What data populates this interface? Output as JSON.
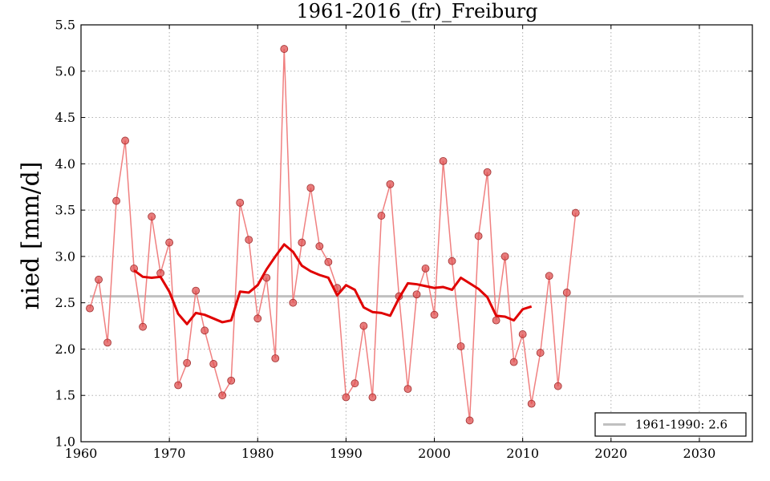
{
  "chart_data": {
    "type": "line",
    "title": "1961-2016_(fr)_Freiburg",
    "xlabel": "",
    "ylabel": "nied [mm/d]",
    "xlim": [
      1960,
      2036
    ],
    "ylim": [
      1.0,
      5.5
    ],
    "xticks": [
      1960,
      1970,
      1980,
      1990,
      2000,
      2010,
      2020,
      2030
    ],
    "yticks": [
      1.0,
      1.5,
      2.0,
      2.5,
      3.0,
      3.5,
      4.0,
      4.5,
      5.0,
      5.5
    ],
    "grid": true,
    "legend_position": "bottom-right",
    "colors": {
      "annual_line": "#f08080",
      "annual_marker": "#e05050",
      "moving_average": "#e00000",
      "reference": "#c0c0c0"
    },
    "series": [
      {
        "kind": "annual",
        "x": [
          1961,
          1962,
          1963,
          1964,
          1965,
          1966,
          1967,
          1968,
          1969,
          1970,
          1971,
          1972,
          1973,
          1974,
          1975,
          1976,
          1977,
          1978,
          1979,
          1980,
          1981,
          1982,
          1983,
          1984,
          1985,
          1986,
          1987,
          1988,
          1989,
          1990,
          1991,
          1992,
          1993,
          1994,
          1995,
          1996,
          1997,
          1998,
          1999,
          2000,
          2001,
          2002,
          2003,
          2004,
          2005,
          2006,
          2007,
          2008,
          2009,
          2010,
          2011,
          2012,
          2013,
          2014,
          2015,
          2016
        ],
        "y": [
          2.44,
          2.75,
          2.07,
          3.6,
          4.25,
          2.87,
          2.24,
          3.43,
          2.82,
          3.15,
          1.61,
          1.85,
          2.63,
          2.2,
          1.84,
          1.5,
          1.66,
          3.58,
          3.18,
          2.33,
          2.77,
          1.9,
          5.24,
          2.5,
          3.15,
          3.74,
          3.11,
          2.94,
          2.66,
          1.48,
          1.63,
          2.25,
          1.48,
          3.44,
          3.78,
          2.57,
          1.57,
          2.59,
          2.87,
          2.37,
          4.03,
          2.95,
          2.03,
          1.23,
          3.22,
          3.91,
          2.31,
          3.0,
          1.86,
          2.16,
          1.41,
          1.96,
          2.79,
          1.6,
          2.61,
          3.47
        ]
      },
      {
        "kind": "moving-average",
        "x": [
          1966,
          1967,
          1968,
          1969,
          1970,
          1971,
          1972,
          1973,
          1974,
          1975,
          1976,
          1977,
          1978,
          1979,
          1980,
          1981,
          1982,
          1983,
          1984,
          1985,
          1986,
          1987,
          1988,
          1989,
          1990,
          1991,
          1992,
          1993,
          1994,
          1995,
          1996,
          1997,
          1998,
          1999,
          2000,
          2001,
          2002,
          2003,
          2004,
          2005,
          2006,
          2007,
          2008,
          2009,
          2010,
          2011
        ],
        "y": [
          2.85,
          2.78,
          2.77,
          2.78,
          2.62,
          2.38,
          2.27,
          2.39,
          2.37,
          2.33,
          2.29,
          2.31,
          2.62,
          2.61,
          2.69,
          2.86,
          3.0,
          3.13,
          3.05,
          2.9,
          2.84,
          2.8,
          2.77,
          2.58,
          2.69,
          2.64,
          2.45,
          2.4,
          2.39,
          2.36,
          2.55,
          2.71,
          2.7,
          2.68,
          2.66,
          2.67,
          2.64,
          2.77,
          2.71,
          2.65,
          2.56,
          2.36,
          2.35,
          2.31,
          2.43,
          2.46
        ]
      },
      {
        "name": "1961-1990: 2.6",
        "kind": "reference",
        "value": 2.57
      }
    ]
  }
}
